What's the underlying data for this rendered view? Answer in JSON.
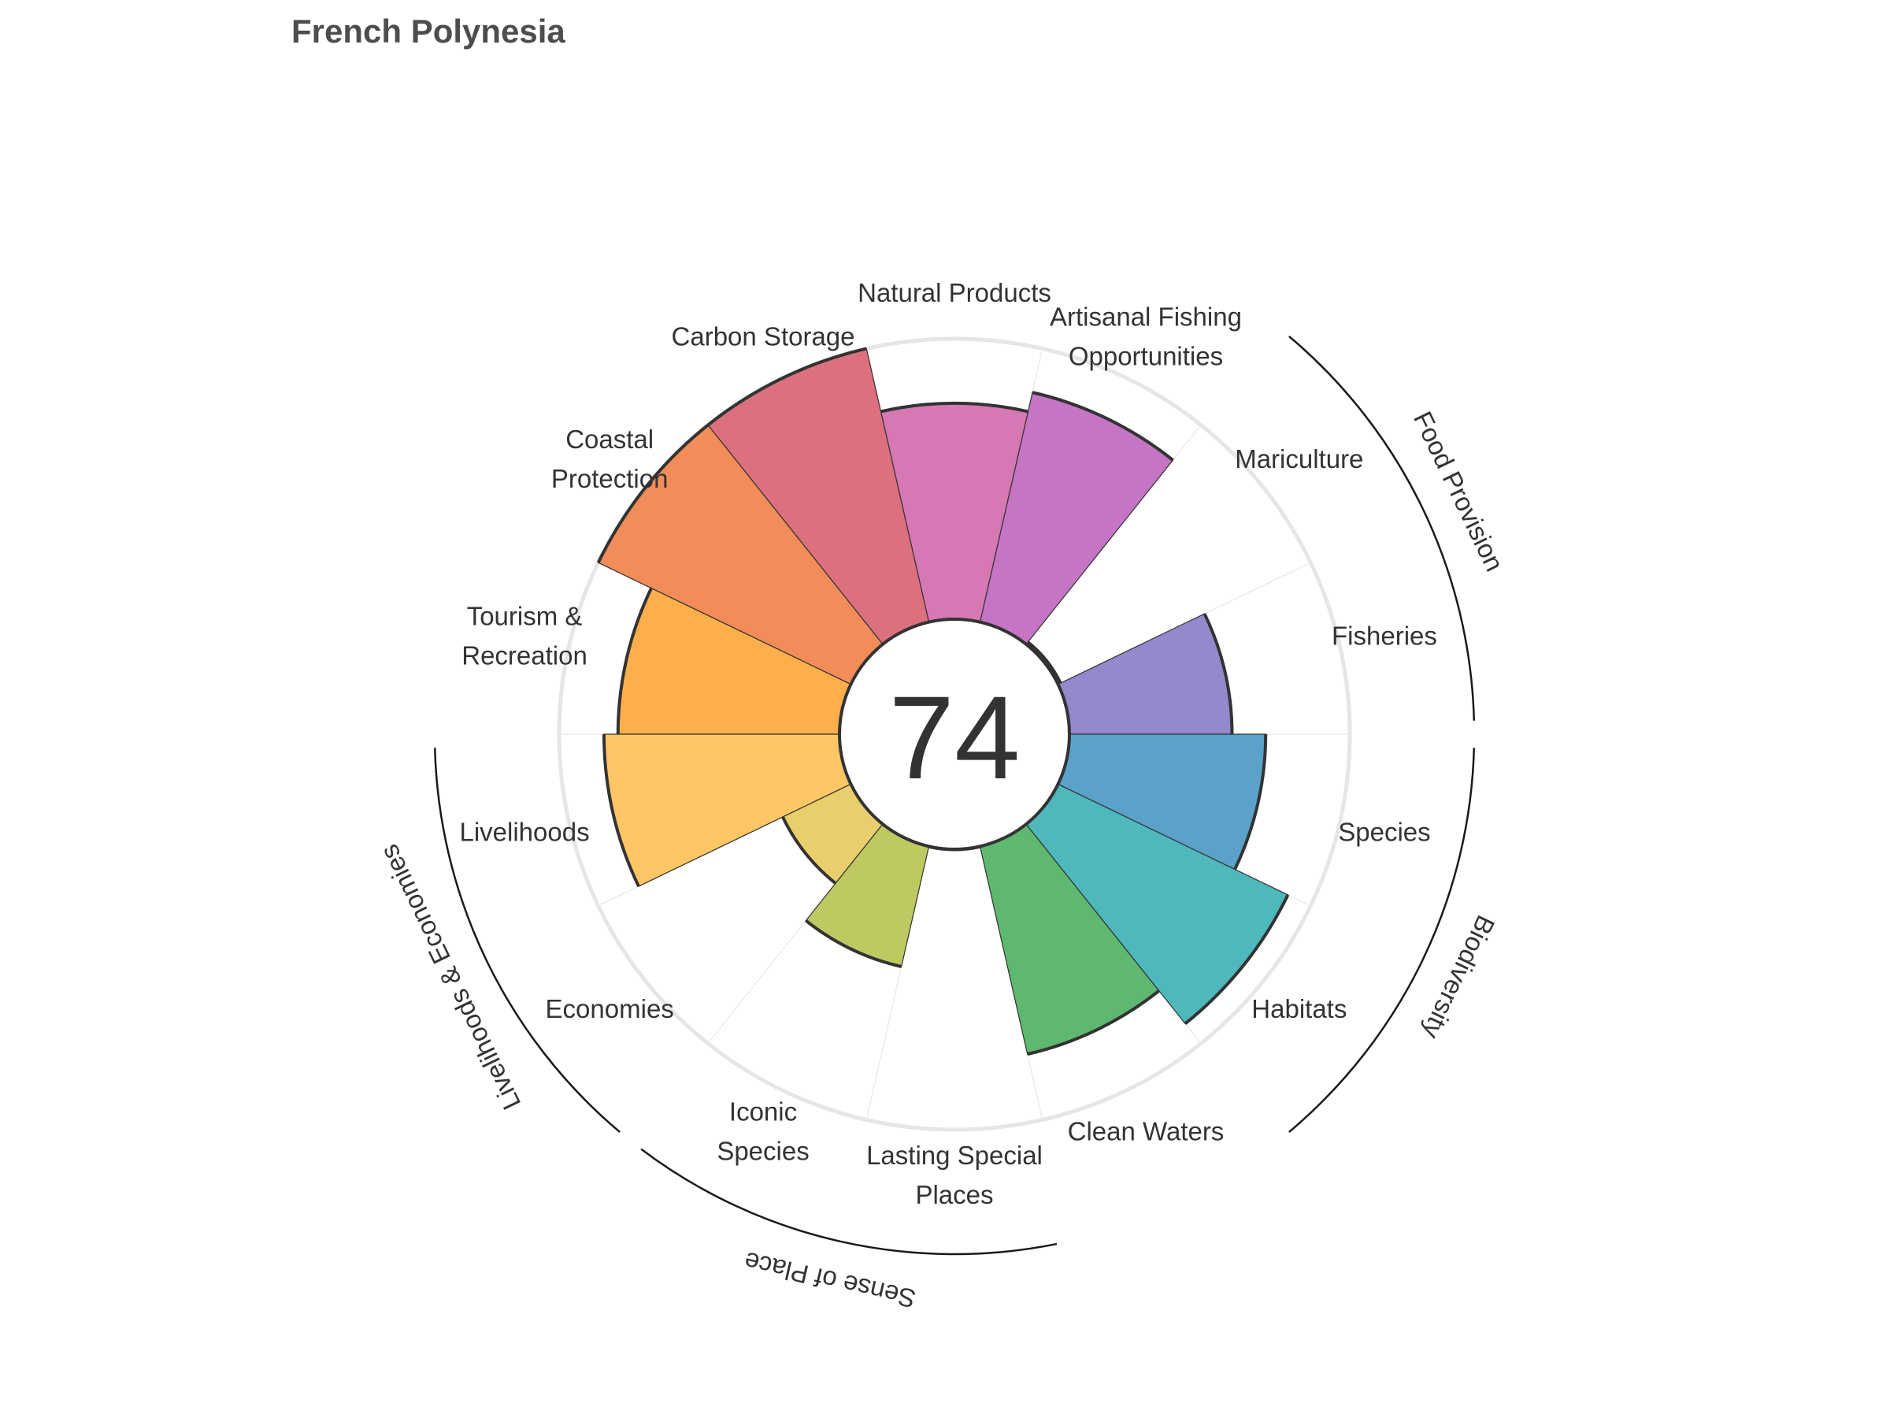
{
  "chart_data": {
    "type": "polar-bar",
    "title": "French Polynesia",
    "center_score": "74",
    "max_value": 100,
    "goals": [
      {
        "lines": [
          "Fisheries"
        ],
        "value": 58,
        "color": "#9389cc"
      },
      {
        "lines": [
          "Mariculture"
        ],
        "value": 1,
        "color": "#c875c2"
      },
      {
        "lines": [
          "Artisanal Fishing",
          "Opportunities"
        ],
        "value": 84,
        "color": "#c575c4"
      },
      {
        "lines": [
          "Natural Products"
        ],
        "value": 77,
        "color": "#d578b4"
      },
      {
        "lines": [
          "Carbon Storage"
        ],
        "value": 100,
        "color": "#dd707f"
      },
      {
        "lines": [
          "Coastal",
          "Protection"
        ],
        "value": 100,
        "color": "#f28c58"
      },
      {
        "lines": [
          "Tourism &",
          "Recreation"
        ],
        "value": 79,
        "color": "#feae4b"
      },
      {
        "lines": [
          "Livelihoods"
        ],
        "value": 84,
        "color": "#fec664"
      },
      {
        "lines": [
          "Economies"
        ],
        "value": 27,
        "color": "#e9cf6c"
      },
      {
        "lines": [
          "Iconic",
          "Species"
        ],
        "value": 44,
        "color": "#bec962"
      },
      {
        "lines": [
          "Lasting Special",
          "Places"
        ],
        "value": 0,
        "color": "#9fce61"
      },
      {
        "lines": [
          "Clean Waters"
        ],
        "value": 76,
        "color": "#5eb86f"
      },
      {
        "lines": [
          "Habitats"
        ],
        "value": 91,
        "color": "#4fb8bd"
      },
      {
        "lines": [
          "Species"
        ],
        "value": 70,
        "color": "#5aa2c9"
      }
    ],
    "groups": [
      {
        "label": "Food Provision",
        "from": 0,
        "to": 2
      },
      {
        "label": "Biodiversity",
        "from": 12,
        "to": 14
      },
      {
        "label": "Sense of Place",
        "from": 9,
        "to": 11
      },
      {
        "label": "Livelihoods & Economies",
        "from": 7,
        "to": 9
      }
    ],
    "grid": true
  }
}
